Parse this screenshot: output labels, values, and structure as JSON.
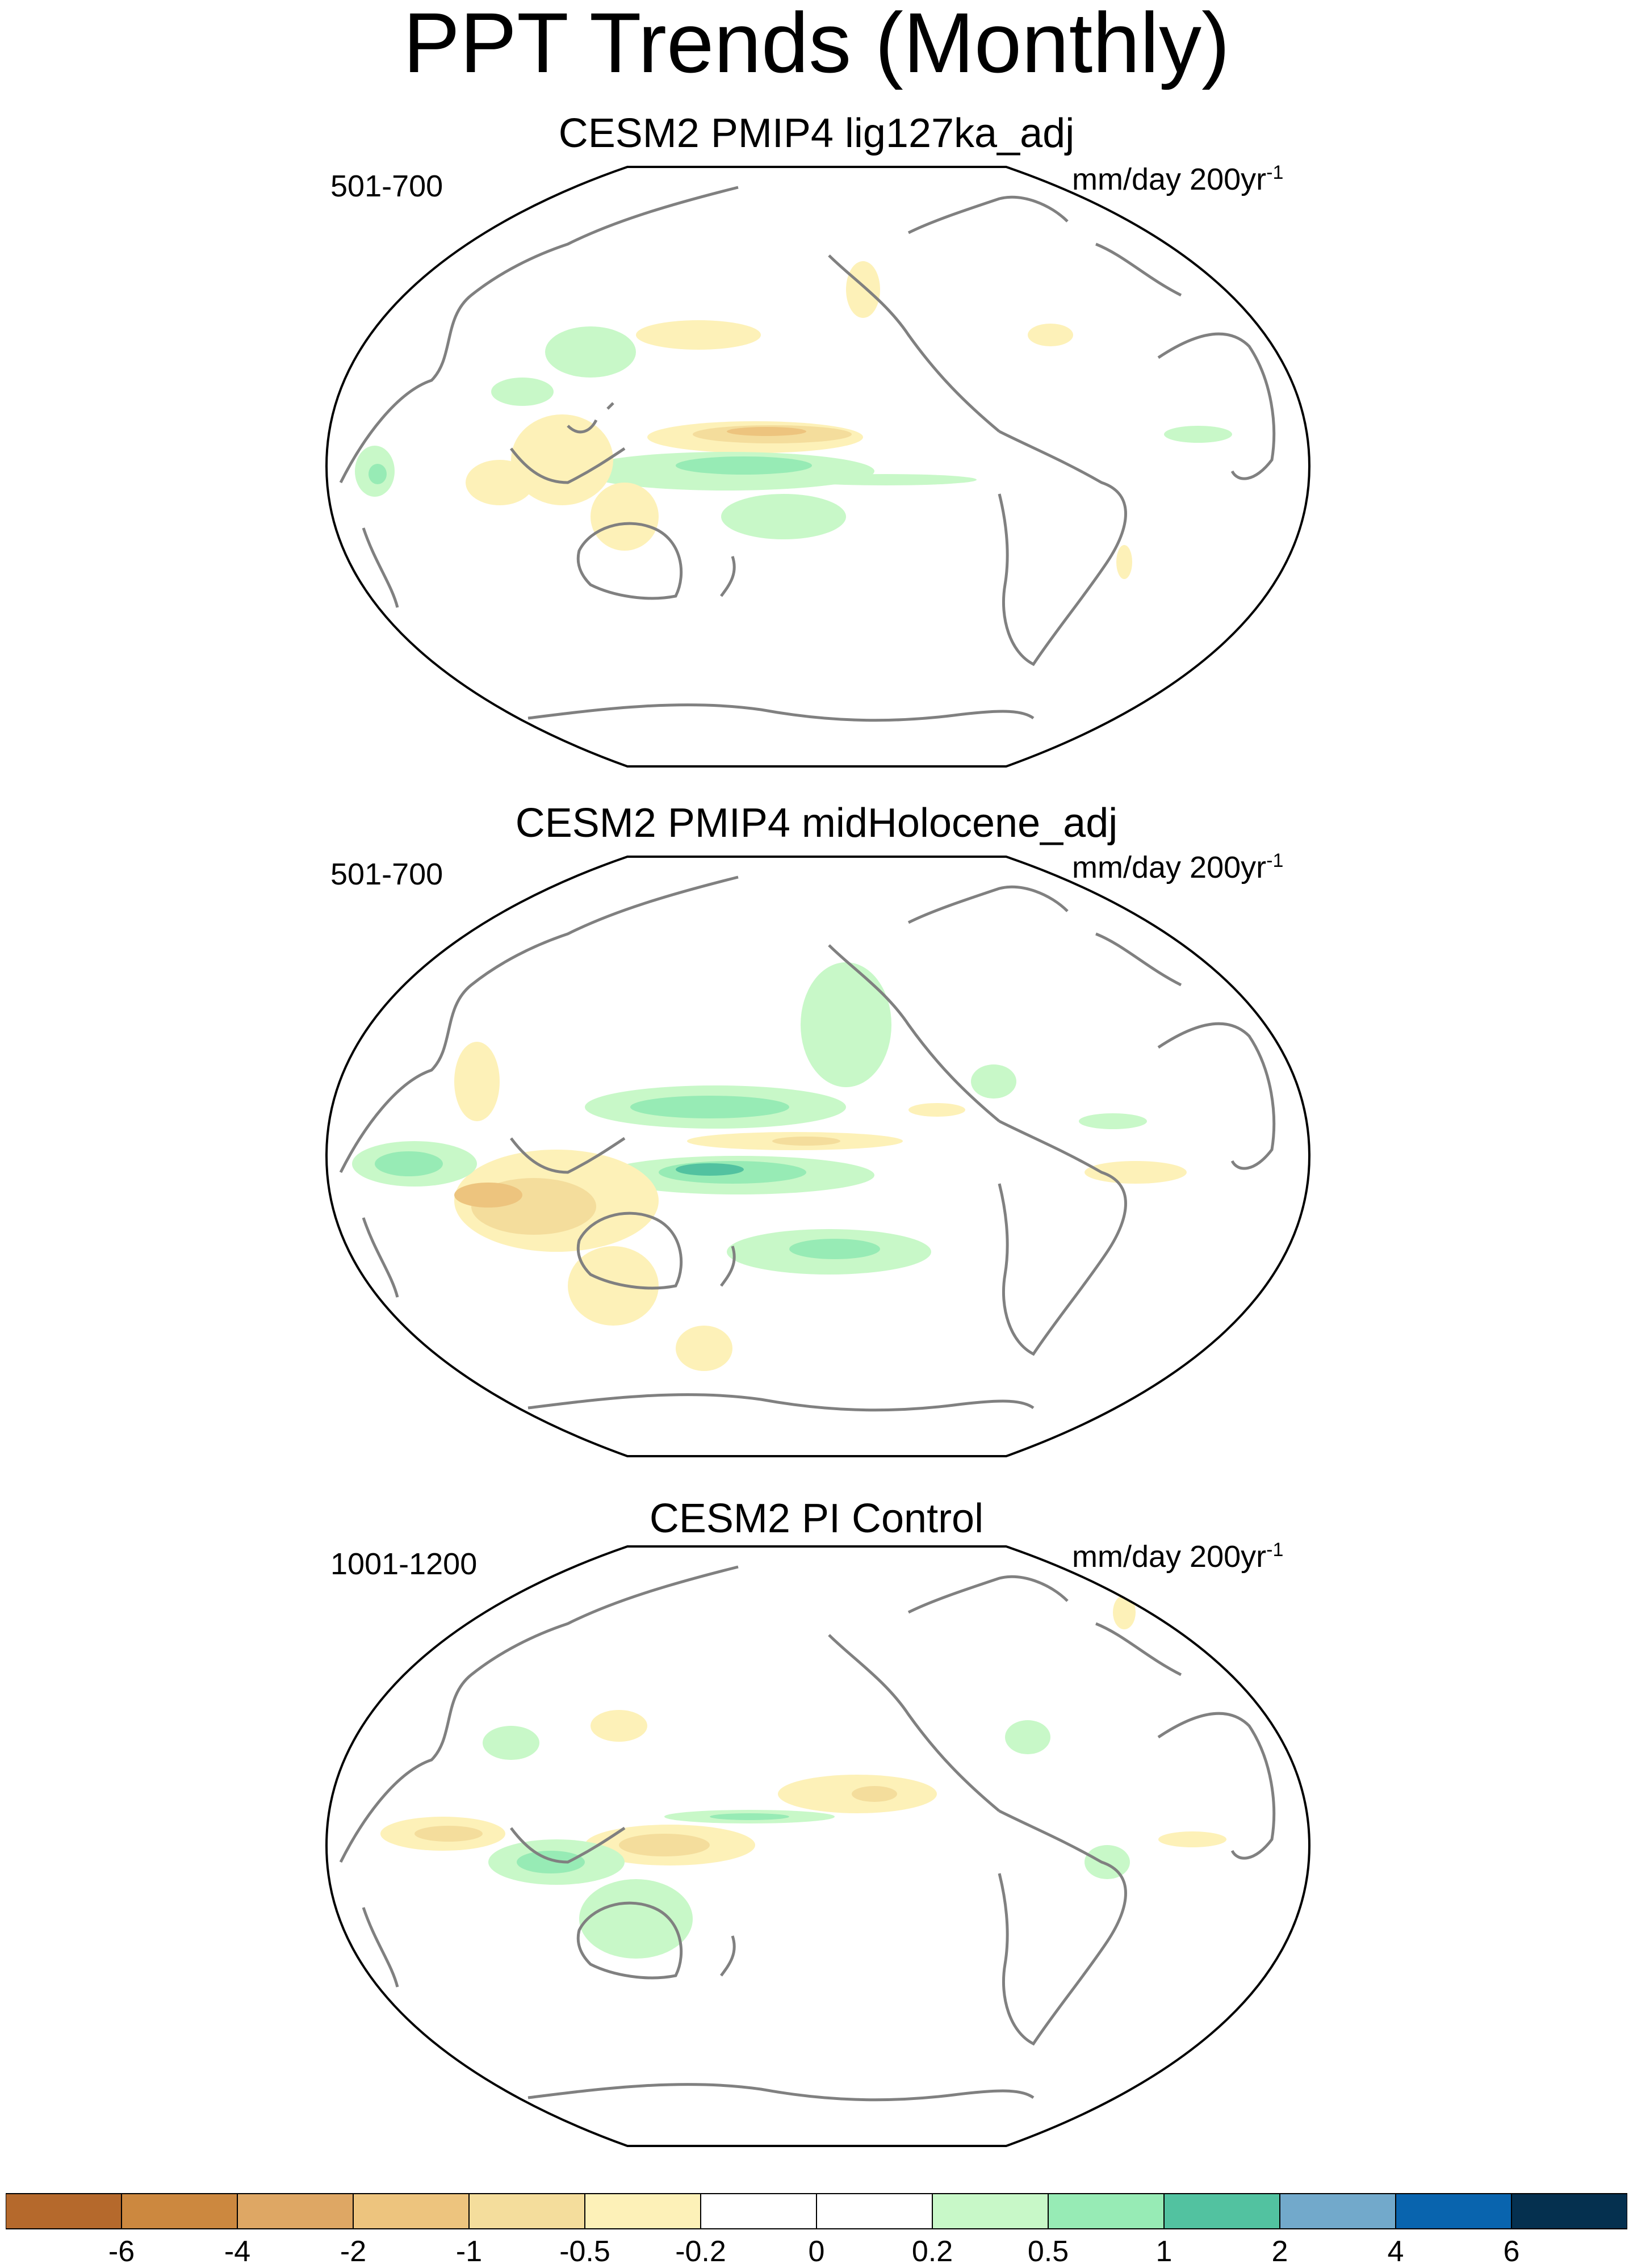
{
  "title": "PPT Trends (Monthly)",
  "panels": [
    {
      "title": "CESM2 PMIP4 lig127ka_adj",
      "period": "501-700",
      "units": "mm/day 200yr",
      "units_sup": "-1"
    },
    {
      "title": "CESM2 PMIP4 midHolocene_adj",
      "period": "501-700",
      "units": "mm/day 200yr",
      "units_sup": "-1"
    },
    {
      "title": "CESM2 PI Control",
      "period": "1001-1200",
      "units": "mm/day 200yr",
      "units_sup": "-1"
    }
  ],
  "colorbar": {
    "labels": [
      "-6",
      "-4",
      "-2",
      "-1",
      "-0.5",
      "-0.2",
      "0",
      "0.2",
      "0.5",
      "1",
      "2",
      "4",
      "6"
    ],
    "colors": [
      "#b5692c",
      "#cc883f",
      "#dea764",
      "#edc47e",
      "#f4dd9c",
      "#fdf1b8",
      "#ffffff",
      "#ffffff",
      "#c8f8c8",
      "#97ebb5",
      "#52c2a0",
      "#72a9cb",
      "#0964ae",
      "#05304f"
    ]
  },
  "colors": {
    "coast": "#808080",
    "wet_light": "#c8f8c8",
    "wet_mid": "#97ebb5",
    "wet_strong": "#52c2a0",
    "dry_light": "#fdf1b8",
    "dry_mid": "#f4dd9c",
    "dry_strong": "#edc47e"
  }
}
